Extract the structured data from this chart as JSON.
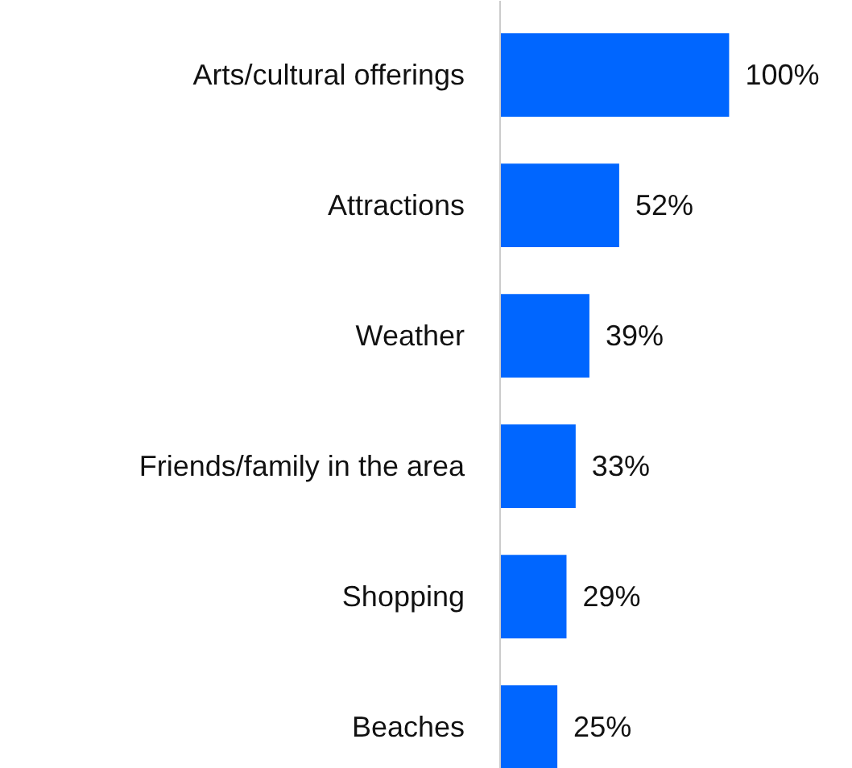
{
  "chart_data": {
    "type": "bar",
    "orientation": "horizontal",
    "categories": [
      "Arts/cultural offerings",
      "Attractions",
      "Weather",
      "Friends/family in the area",
      "Shopping",
      "Beaches"
    ],
    "values": [
      100,
      52,
      39,
      33,
      29,
      25
    ],
    "color": "#0066ff",
    "value_labels": [
      "100%",
      "52%",
      "39%",
      "33%",
      "29%",
      "25%"
    ]
  }
}
